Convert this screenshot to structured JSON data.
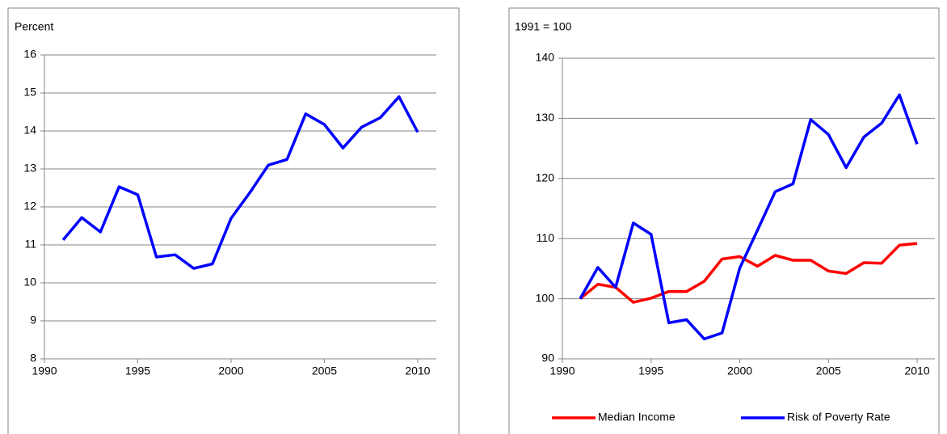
{
  "chart_data": [
    {
      "type": "line",
      "y_label": "Percent",
      "x": [
        1991,
        1992,
        1993,
        1994,
        1995,
        1996,
        1997,
        1998,
        1999,
        2000,
        2001,
        2002,
        2003,
        2004,
        2005,
        2006,
        2007,
        2008,
        2009,
        2010
      ],
      "values": [
        11.13,
        11.72,
        11.34,
        12.53,
        12.32,
        10.68,
        10.74,
        10.38,
        10.5,
        11.7,
        12.37,
        13.1,
        13.25,
        14.45,
        14.17,
        13.55,
        14.1,
        14.35,
        14.9,
        13.97
      ],
      "color": "#0000ff",
      "xlim": [
        1990,
        2011
      ],
      "xticks": [
        1990,
        1995,
        2000,
        2005,
        2010
      ],
      "ylim": [
        8,
        16
      ],
      "yticks": [
        8,
        9,
        10,
        11,
        12,
        13,
        14,
        15,
        16
      ],
      "grid": true
    },
    {
      "type": "line",
      "y_label": "1991 = 100",
      "x": [
        1991,
        1992,
        1993,
        1994,
        1995,
        1996,
        1997,
        1998,
        1999,
        2000,
        2001,
        2002,
        2003,
        2004,
        2005,
        2006,
        2007,
        2008,
        2009,
        2010
      ],
      "series": [
        {
          "name": "Median Income",
          "color": "#ff0000",
          "values": [
            100,
            102.4,
            101.9,
            99.4,
            100.1,
            101.2,
            101.2,
            102.9,
            106.6,
            107.0,
            105.4,
            107.2,
            106.4,
            106.4,
            104.6,
            104.2,
            106.0,
            105.9,
            108.9,
            109.2
          ]
        },
        {
          "name": "Risk of Poverty Rate",
          "color": "#0000ff",
          "values": [
            100,
            105.2,
            101.9,
            112.6,
            110.7,
            96.0,
            96.5,
            93.3,
            94.3,
            105.1,
            111.4,
            117.8,
            119.1,
            129.8,
            127.3,
            121.8,
            126.9,
            129.2,
            133.9,
            125.7
          ]
        }
      ],
      "xlim": [
        1990,
        2011
      ],
      "xticks": [
        1990,
        1995,
        2000,
        2005,
        2010
      ],
      "ylim": [
        90,
        140
      ],
      "yticks": [
        90,
        100,
        110,
        120,
        130,
        140
      ],
      "grid": true,
      "legend": "bottom"
    }
  ]
}
